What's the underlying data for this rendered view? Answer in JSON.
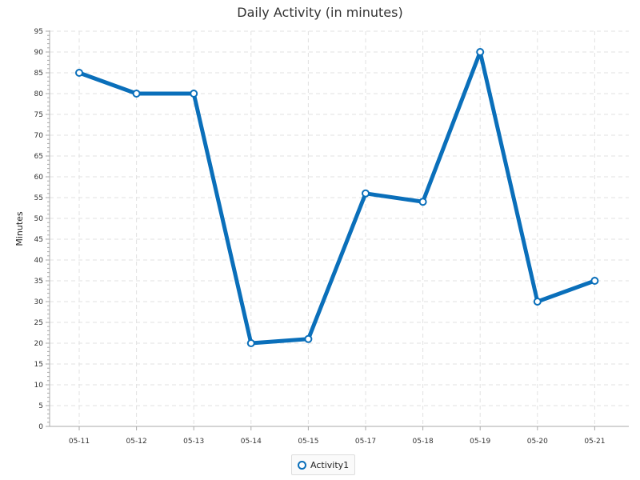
{
  "chart_data": {
    "type": "line",
    "title": "Daily Activity (in minutes)",
    "xlabel": "",
    "ylabel": "Minutes",
    "categories": [
      "05-11",
      "05-12",
      "05-13",
      "05-14",
      "05-15",
      "05-17",
      "05-18",
      "05-19",
      "05-20",
      "05-21"
    ],
    "series": [
      {
        "name": "Activity1",
        "values": [
          85,
          80,
          80,
          20,
          21,
          56,
          54,
          90,
          30,
          35
        ]
      }
    ],
    "ylim": [
      0,
      95
    ],
    "y_tick_step": 5,
    "grid": true,
    "legend_position": "bottom",
    "colors": {
      "series": "#0a6fba",
      "grid": "#e2e2e2",
      "axis": "#aaaaaa"
    }
  }
}
